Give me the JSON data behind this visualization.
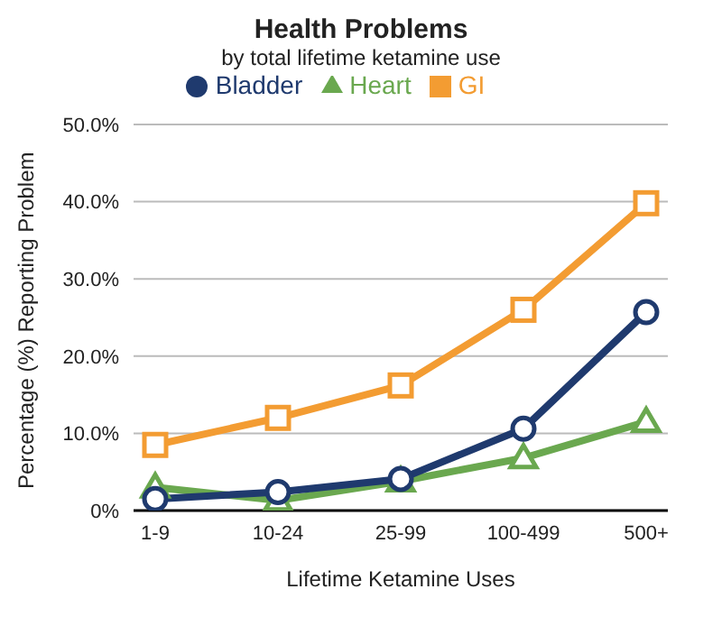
{
  "chart_data": {
    "type": "line",
    "title": "Health Problems",
    "subtitle": "by total lifetime ketamine use",
    "xlabel": "Lifetime Ketamine Uses",
    "ylabel": "Percentage (%) Reporting Problem",
    "categories": [
      "1-9",
      "10-24",
      "25-99",
      "100-499",
      "500+"
    ],
    "series": [
      {
        "name": "Bladder",
        "color": "#1f3a6e",
        "marker": "circle",
        "values": [
          1.5,
          2.4,
          4.1,
          10.6,
          25.7
        ]
      },
      {
        "name": "Heart",
        "color": "#6aa84f",
        "marker": "triangle",
        "values": [
          3.0,
          1.3,
          3.8,
          6.8,
          11.5
        ]
      },
      {
        "name": "GI",
        "color": "#f39c32",
        "marker": "square",
        "values": [
          8.5,
          12.0,
          16.2,
          26.0,
          39.8
        ]
      }
    ],
    "ylim": [
      0,
      50
    ],
    "yticks": [
      {
        "value": 0,
        "label": "0%"
      },
      {
        "value": 10,
        "label": "10.0%"
      },
      {
        "value": 20,
        "label": "20.0%"
      },
      {
        "value": 30,
        "label": "30.0%"
      },
      {
        "value": 40,
        "label": "40.0%"
      },
      {
        "value": 50,
        "label": "50.0%"
      }
    ],
    "grid": "y",
    "legend": "top"
  }
}
